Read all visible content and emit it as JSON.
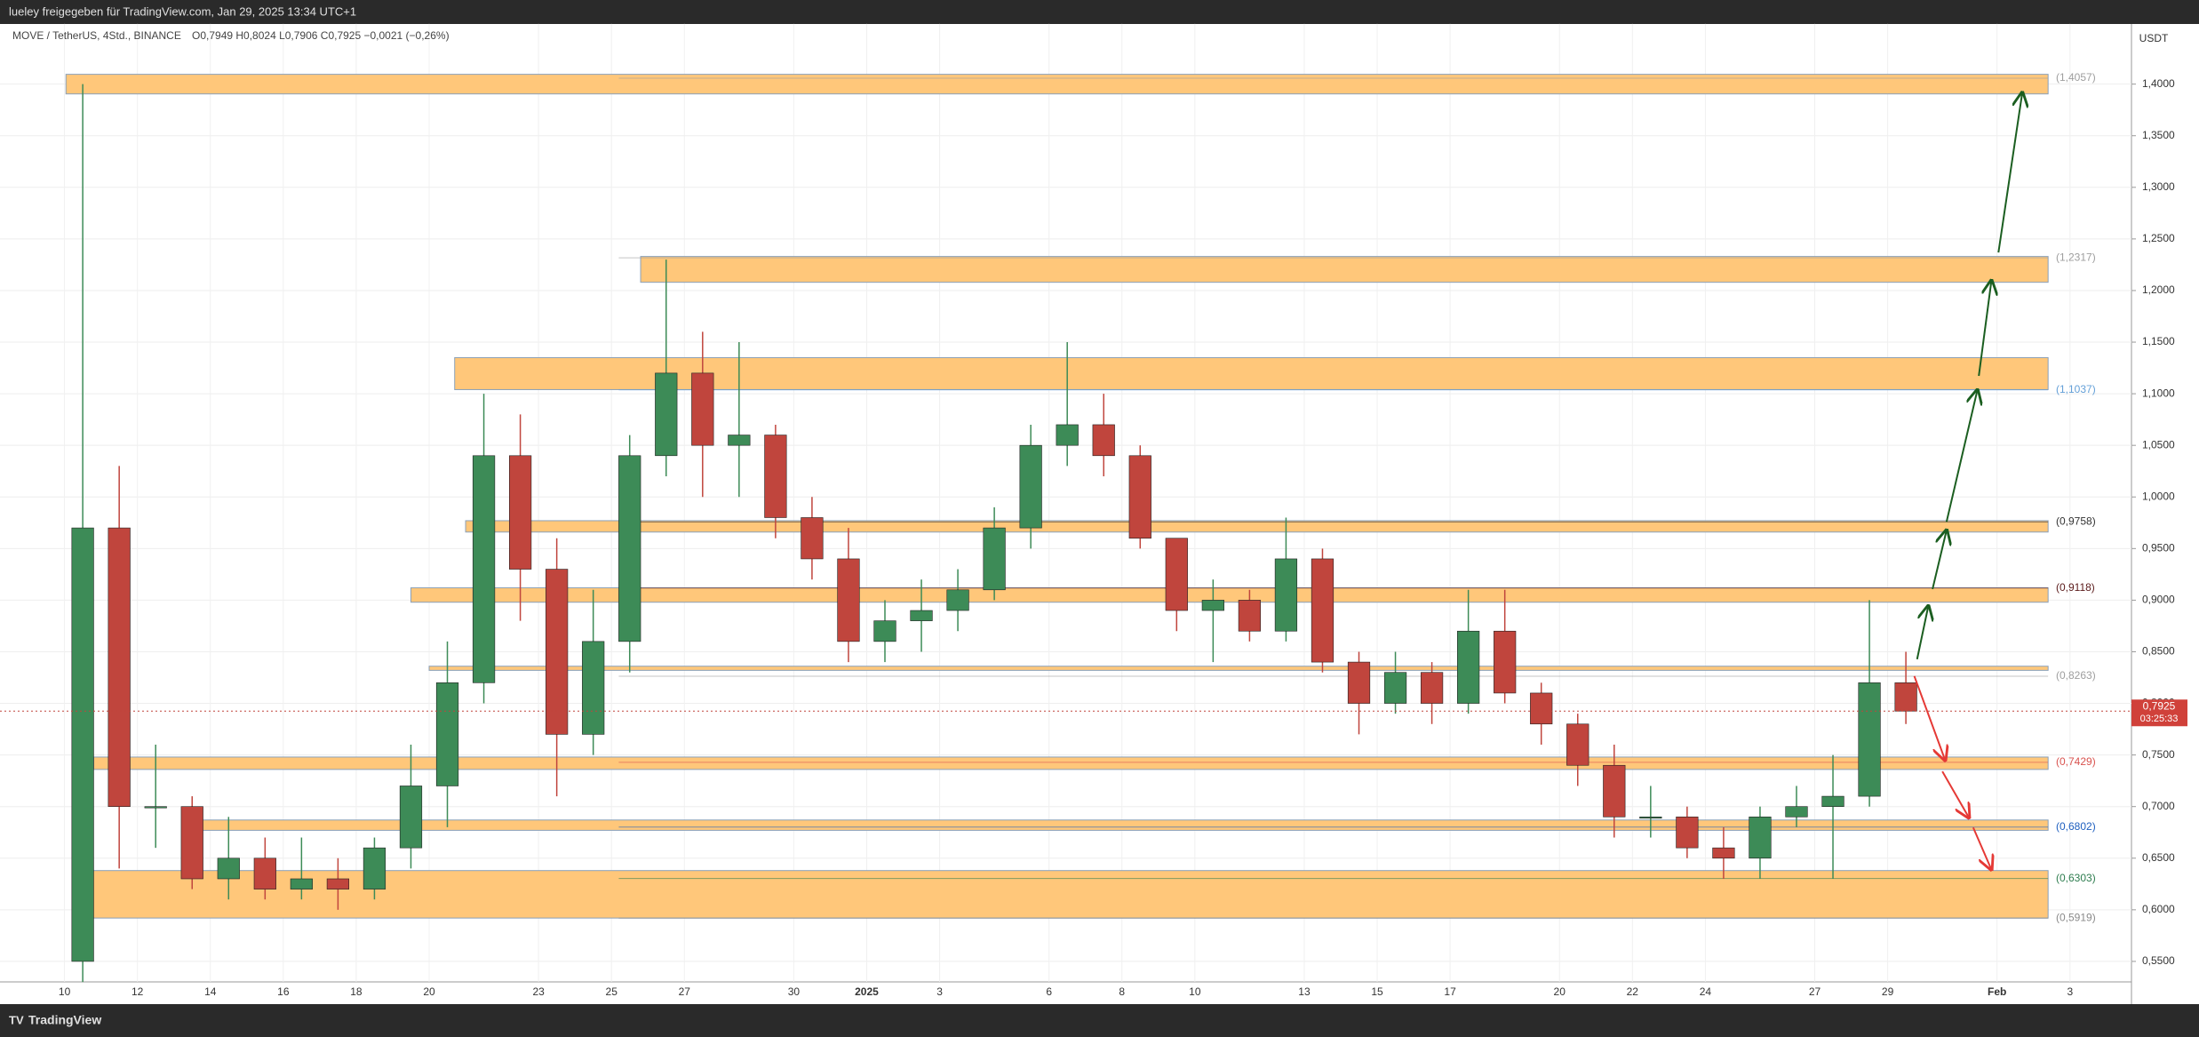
{
  "header": {
    "share_line": "lueley freigegeben für TradingView.com, Jan 29, 2025 13:34 UTC+1",
    "symbol": "MOVE / TetherUS, 4Std., BINANCE",
    "ohlc": "O0,7949  H0,8024  L0,7906  C0,7925  −0,0021 (−0,26%)",
    "currency": "USDT",
    "price_tag": "0,7925",
    "countdown": "03:25:33"
  },
  "footer": {
    "brand": "TradingView"
  },
  "chart_data": {
    "type": "candlestick",
    "up_color": "#3d8b57",
    "down_color": "#c0453d",
    "zone_color": "#ffc77a",
    "grid": true,
    "ylim": [
      0.5302,
      1.4584
    ],
    "yticks": [
      {
        "value": 0.55,
        "label": "0,5500"
      },
      {
        "value": 0.6,
        "label": "0,6000"
      },
      {
        "value": 0.65,
        "label": "0,6500"
      },
      {
        "value": 0.7,
        "label": "0,7000"
      },
      {
        "value": 0.75,
        "label": "0,7500"
      },
      {
        "value": 0.8,
        "label": "0,8000"
      },
      {
        "value": 0.85,
        "label": "0,8500"
      },
      {
        "value": 0.9,
        "label": "0,9000"
      },
      {
        "value": 0.95,
        "label": "0,9500"
      },
      {
        "value": 1.0,
        "label": "1,0000"
      },
      {
        "value": 1.05,
        "label": "1,0500"
      },
      {
        "value": 1.1,
        "label": "1,1000"
      },
      {
        "value": 1.15,
        "label": "1,1500"
      },
      {
        "value": 1.2,
        "label": "1,2000"
      },
      {
        "value": 1.25,
        "label": "1,2500"
      },
      {
        "value": 1.3,
        "label": "1,3000"
      },
      {
        "value": 1.35,
        "label": "1,3500"
      },
      {
        "value": 1.4,
        "label": "1,4000"
      }
    ],
    "x_labels": [
      "10",
      "12",
      "14",
      "16",
      "18",
      "20",
      "23",
      "25",
      "27",
      "30",
      "2025",
      "3",
      "6",
      "8",
      "10",
      "13",
      "15",
      "17",
      "20",
      "22",
      "24",
      "27",
      "29",
      "Feb",
      "3"
    ],
    "open": [
      0.55,
      0.97,
      0.7,
      0.7,
      0.63,
      0.65,
      0.62,
      0.63,
      0.62,
      0.66,
      0.72,
      0.82,
      1.04,
      0.93,
      0.77,
      0.86,
      1.04,
      1.12,
      1.05,
      1.06,
      0.98,
      0.94,
      0.86,
      0.88,
      0.89,
      0.91,
      0.97,
      1.05,
      1.07,
      1.04,
      0.96,
      0.89,
      0.9,
      0.87,
      0.94,
      0.84,
      0.8,
      0.83,
      0.8,
      0.87,
      0.81,
      0.78,
      0.74,
      0.69,
      0.69,
      0.66,
      0.65,
      0.69,
      0.7,
      0.71,
      0.82
    ],
    "high": [
      1.4,
      1.03,
      0.76,
      0.71,
      0.69,
      0.67,
      0.67,
      0.65,
      0.67,
      0.76,
      0.86,
      1.1,
      1.08,
      0.96,
      0.91,
      1.06,
      1.23,
      1.16,
      1.15,
      1.07,
      1.0,
      0.97,
      0.9,
      0.92,
      0.93,
      0.99,
      1.07,
      1.15,
      1.1,
      1.05,
      0.96,
      0.92,
      0.91,
      0.98,
      0.95,
      0.85,
      0.85,
      0.84,
      0.91,
      0.91,
      0.82,
      0.79,
      0.76,
      0.72,
      0.7,
      0.68,
      0.7,
      0.72,
      0.75,
      0.9,
      0.85
    ],
    "low": [
      0.53,
      0.64,
      0.66,
      0.62,
      0.61,
      0.61,
      0.61,
      0.6,
      0.61,
      0.64,
      0.68,
      0.8,
      0.88,
      0.71,
      0.75,
      0.83,
      1.02,
      1.0,
      1.0,
      0.96,
      0.92,
      0.84,
      0.84,
      0.85,
      0.87,
      0.9,
      0.95,
      1.03,
      1.02,
      0.95,
      0.87,
      0.84,
      0.86,
      0.86,
      0.83,
      0.77,
      0.79,
      0.78,
      0.79,
      0.8,
      0.76,
      0.72,
      0.67,
      0.67,
      0.65,
      0.63,
      0.63,
      0.68,
      0.63,
      0.7,
      0.78
    ],
    "close": [
      0.97,
      0.7,
      0.7,
      0.63,
      0.65,
      0.62,
      0.63,
      0.62,
      0.66,
      0.72,
      0.82,
      1.04,
      0.93,
      0.77,
      0.86,
      1.04,
      1.12,
      1.05,
      1.06,
      0.98,
      0.94,
      0.86,
      0.88,
      0.89,
      0.91,
      0.97,
      1.05,
      1.07,
      1.04,
      0.96,
      0.89,
      0.9,
      0.87,
      0.94,
      0.84,
      0.8,
      0.83,
      0.8,
      0.87,
      0.81,
      0.78,
      0.74,
      0.69,
      0.69,
      0.66,
      0.65,
      0.69,
      0.7,
      0.71,
      0.82,
      0.7925
    ],
    "zones": [
      {
        "low": 1.3905,
        "high": 1.4095
      },
      {
        "low": 1.208,
        "high": 1.233
      },
      {
        "low": 1.104,
        "high": 1.135
      },
      {
        "low": 0.966,
        "high": 0.977
      },
      {
        "low": 0.898,
        "high": 0.912
      },
      {
        "low": 0.832,
        "high": 0.836
      },
      {
        "low": 0.736,
        "high": 0.748
      },
      {
        "low": 0.677,
        "high": 0.687
      },
      {
        "low": 0.592,
        "high": 0.638
      }
    ],
    "levels": [
      {
        "value": 1.4057,
        "label": "(1,4057)",
        "color": "#9e9e9e"
      },
      {
        "value": 1.2317,
        "label": "(1,2317)",
        "color": "#9e9e9e"
      },
      {
        "value": 1.1037,
        "label": "(1,1037)",
        "color": "#64a0d8"
      },
      {
        "value": 0.9758,
        "label": "(0,9758)",
        "color": "#333333"
      },
      {
        "value": 0.9118,
        "label": "(0,9118)",
        "color": "#5a1a1a"
      },
      {
        "value": 0.8263,
        "label": "(0,8263)",
        "color": "#9e9e9e"
      },
      {
        "value": 0.7429,
        "label": "(0,7429)",
        "color": "#d9534f"
      },
      {
        "value": 0.6802,
        "label": "(0,6802)",
        "color": "#1e5fbf"
      },
      {
        "value": 0.6303,
        "label": "(0,6303)",
        "color": "#2e7d4f"
      },
      {
        "value": 0.5919,
        "label": "(0,5919)",
        "color": "#8a8a8a"
      }
    ]
  }
}
